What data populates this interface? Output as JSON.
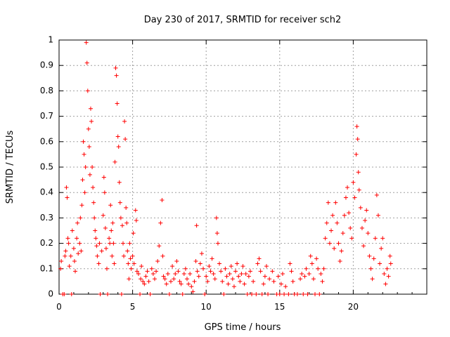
{
  "chart_data": {
    "type": "scatter",
    "title": "Day 230 of 2017, SRMTID for receiver sch2",
    "xlabel": "GPS time / hours",
    "ylabel": "SRMTID / TECUs",
    "xlim": [
      0,
      25
    ],
    "ylim": [
      0,
      1
    ],
    "xticks": [
      0,
      5,
      10,
      15,
      20
    ],
    "xtick_labels": [
      "0",
      "5",
      "10",
      "15",
      "20"
    ],
    "yticks": [
      0,
      0.1,
      0.2,
      0.3,
      0.4,
      0.5,
      0.6,
      0.7,
      0.8,
      0.9,
      1
    ],
    "ytick_labels": [
      "0",
      "0.1",
      "0.2",
      "0.3",
      "0.4",
      "0.5",
      "0.6",
      "0.7",
      "0.8",
      "0.9",
      "1"
    ],
    "grid": true,
    "marker": "+",
    "color": "#ff0000",
    "series": [
      {
        "name": "SRMTID",
        "points": [
          [
            0.1,
            0.1
          ],
          [
            0.15,
            0.13
          ],
          [
            0.25,
            0.0
          ],
          [
            0.35,
            0.0
          ],
          [
            0.4,
            0.15
          ],
          [
            0.45,
            0.17
          ],
          [
            0.5,
            0.42
          ],
          [
            0.55,
            0.38
          ],
          [
            0.6,
            0.22
          ],
          [
            0.65,
            0.2
          ],
          [
            0.7,
            0.11
          ],
          [
            0.8,
            0.15
          ],
          [
            0.85,
            0.0
          ],
          [
            0.9,
            0.25
          ],
          [
            1.0,
            0.18
          ],
          [
            1.05,
            0.13
          ],
          [
            1.1,
            0.09
          ],
          [
            1.2,
            0.22
          ],
          [
            1.25,
            0.28
          ],
          [
            1.3,
            0.16
          ],
          [
            1.4,
            0.2
          ],
          [
            1.45,
            0.3
          ],
          [
            1.5,
            0.17
          ],
          [
            1.55,
            0.35
          ],
          [
            1.6,
            0.45
          ],
          [
            1.65,
            0.6
          ],
          [
            1.7,
            0.55
          ],
          [
            1.75,
            0.4
          ],
          [
            1.8,
            0.5
          ],
          [
            1.85,
            0.99
          ],
          [
            1.9,
            0.91
          ],
          [
            1.95,
            0.8
          ],
          [
            2.0,
            0.65
          ],
          [
            2.05,
            0.58
          ],
          [
            2.1,
            0.47
          ],
          [
            2.15,
            0.73
          ],
          [
            2.2,
            0.68
          ],
          [
            2.25,
            0.5
          ],
          [
            2.3,
            0.42
          ],
          [
            2.35,
            0.36
          ],
          [
            2.4,
            0.3
          ],
          [
            2.45,
            0.25
          ],
          [
            2.5,
            0.22
          ],
          [
            2.55,
            0.19
          ],
          [
            2.6,
            0.15
          ],
          [
            2.7,
            0.12
          ],
          [
            2.75,
            0.2
          ],
          [
            2.8,
            0.0
          ],
          [
            2.9,
            0.17
          ],
          [
            3.0,
            0.31
          ],
          [
            3.05,
            0.46
          ],
          [
            3.1,
            0.4
          ],
          [
            3.15,
            0.26
          ],
          [
            3.2,
            0.18
          ],
          [
            3.25,
            0.1
          ],
          [
            3.3,
            0.0
          ],
          [
            3.4,
            0.22
          ],
          [
            3.45,
            0.2
          ],
          [
            3.5,
            0.35
          ],
          [
            3.55,
            0.25
          ],
          [
            3.6,
            0.15
          ],
          [
            3.65,
            0.28
          ],
          [
            3.7,
            0.2
          ],
          [
            3.75,
            0.12
          ],
          [
            3.8,
            0.52
          ],
          [
            3.85,
            0.89
          ],
          [
            3.9,
            0.86
          ],
          [
            3.95,
            0.75
          ],
          [
            4.0,
            0.62
          ],
          [
            4.05,
            0.58
          ],
          [
            4.1,
            0.44
          ],
          [
            4.15,
            0.36
          ],
          [
            4.2,
            0.3
          ],
          [
            4.25,
            0.0
          ],
          [
            4.3,
            0.27
          ],
          [
            4.35,
            0.2
          ],
          [
            4.4,
            0.15
          ],
          [
            4.45,
            0.68
          ],
          [
            4.5,
            0.61
          ],
          [
            4.55,
            0.34
          ],
          [
            4.6,
            0.28
          ],
          [
            4.65,
            0.17
          ],
          [
            4.7,
            0.12
          ],
          [
            4.75,
            0.06
          ],
          [
            4.8,
            0.2
          ],
          [
            4.85,
            0.14
          ],
          [
            4.9,
            0.1
          ],
          [
            5.0,
            0.15
          ],
          [
            5.05,
            0.24
          ],
          [
            5.1,
            0.12
          ],
          [
            5.2,
            0.33
          ],
          [
            5.25,
            0.29
          ],
          [
            5.3,
            0.09
          ],
          [
            5.4,
            0.08
          ],
          [
            5.5,
            0.0
          ],
          [
            5.55,
            0.06
          ],
          [
            5.6,
            0.11
          ],
          [
            5.7,
            0.05
          ],
          [
            5.8,
            0.04
          ],
          [
            5.9,
            0.07
          ],
          [
            6.0,
            0.09
          ],
          [
            6.1,
            0.05
          ],
          [
            6.2,
            0.0
          ],
          [
            6.3,
            0.1
          ],
          [
            6.4,
            0.08
          ],
          [
            6.5,
            0.06
          ],
          [
            6.6,
            0.09
          ],
          [
            6.7,
            0.13
          ],
          [
            6.8,
            0.19
          ],
          [
            6.9,
            0.28
          ],
          [
            7.0,
            0.37
          ],
          [
            7.05,
            0.15
          ],
          [
            7.1,
            0.07
          ],
          [
            7.2,
            0.06
          ],
          [
            7.3,
            0.04
          ],
          [
            7.4,
            0.08
          ],
          [
            7.5,
            0.0
          ],
          [
            7.6,
            0.05
          ],
          [
            7.7,
            0.11
          ],
          [
            7.8,
            0.06
          ],
          [
            7.9,
            0.08
          ],
          [
            8.0,
            0.13
          ],
          [
            8.1,
            0.09
          ],
          [
            8.2,
            0.05
          ],
          [
            8.3,
            0.04
          ],
          [
            8.4,
            0.0
          ],
          [
            8.5,
            0.08
          ],
          [
            8.6,
            0.1
          ],
          [
            8.7,
            0.06
          ],
          [
            8.8,
            0.04
          ],
          [
            8.9,
            0.08
          ],
          [
            9.0,
            0.03
          ],
          [
            9.1,
            0.01
          ],
          [
            9.2,
            0.05
          ],
          [
            9.3,
            0.13
          ],
          [
            9.35,
            0.27
          ],
          [
            9.4,
            0.09
          ],
          [
            9.5,
            0.07
          ],
          [
            9.6,
            0.12
          ],
          [
            9.7,
            0.16
          ],
          [
            9.8,
            0.1
          ],
          [
            9.9,
            0.0
          ],
          [
            10.0,
            0.07
          ],
          [
            10.1,
            0.05
          ],
          [
            10.2,
            0.11
          ],
          [
            10.3,
            0.09
          ],
          [
            10.4,
            0.14
          ],
          [
            10.5,
            0.08
          ],
          [
            10.6,
            0.06
          ],
          [
            10.7,
            0.3
          ],
          [
            10.75,
            0.24
          ],
          [
            10.8,
            0.2
          ],
          [
            10.9,
            0.12
          ],
          [
            11.0,
            0.09
          ],
          [
            11.1,
            0.05
          ],
          [
            11.2,
            0.0
          ],
          [
            11.3,
            0.1
          ],
          [
            11.4,
            0.07
          ],
          [
            11.5,
            0.04
          ],
          [
            11.6,
            0.08
          ],
          [
            11.7,
            0.11
          ],
          [
            11.8,
            0.06
          ],
          [
            11.9,
            0.03
          ],
          [
            12.0,
            0.09
          ],
          [
            12.1,
            0.12
          ],
          [
            12.2,
            0.07
          ],
          [
            12.3,
            0.05
          ],
          [
            12.4,
            0.08
          ],
          [
            12.5,
            0.11
          ],
          [
            12.6,
            0.04
          ],
          [
            12.7,
            0.08
          ],
          [
            12.8,
            0.0
          ],
          [
            12.9,
            0.07
          ],
          [
            13.0,
            0.09
          ],
          [
            13.1,
            0.0
          ],
          [
            13.2,
            0.05
          ],
          [
            13.4,
            0.0
          ],
          [
            13.5,
            0.12
          ],
          [
            13.6,
            0.14
          ],
          [
            13.7,
            0.09
          ],
          [
            13.8,
            0.0
          ],
          [
            13.9,
            0.04
          ],
          [
            14.0,
            0.07
          ],
          [
            14.1,
            0.11
          ],
          [
            14.2,
            0.0
          ],
          [
            14.3,
            0.06
          ],
          [
            14.5,
            0.09
          ],
          [
            14.6,
            0.05
          ],
          [
            14.8,
            0.0
          ],
          [
            14.9,
            0.07
          ],
          [
            15.0,
            0.0
          ],
          [
            15.1,
            0.04
          ],
          [
            15.2,
            0.08
          ],
          [
            15.3,
            0.0
          ],
          [
            15.4,
            0.03
          ],
          [
            15.6,
            0.0
          ],
          [
            15.7,
            0.12
          ],
          [
            15.8,
            0.09
          ],
          [
            15.9,
            0.05
          ],
          [
            16.0,
            0.0
          ],
          [
            16.2,
            0.0
          ],
          [
            16.4,
            0.06
          ],
          [
            16.5,
            0.08
          ],
          [
            16.6,
            0.0
          ],
          [
            16.7,
            0.07
          ],
          [
            16.8,
            0.1
          ],
          [
            16.9,
            0.0
          ],
          [
            17.0,
            0.08
          ],
          [
            17.1,
            0.15
          ],
          [
            17.2,
            0.12
          ],
          [
            17.3,
            0.06
          ],
          [
            17.4,
            0.0
          ],
          [
            17.5,
            0.14
          ],
          [
            17.6,
            0.1
          ],
          [
            17.7,
            0.0
          ],
          [
            17.8,
            0.08
          ],
          [
            17.9,
            0.05
          ],
          [
            18.0,
            0.1
          ],
          [
            18.1,
            0.22
          ],
          [
            18.2,
            0.28
          ],
          [
            18.3,
            0.36
          ],
          [
            18.4,
            0.2
          ],
          [
            18.5,
            0.25
          ],
          [
            18.6,
            0.31
          ],
          [
            18.7,
            0.18
          ],
          [
            18.8,
            0.36
          ],
          [
            18.9,
            0.28
          ],
          [
            19.0,
            0.2
          ],
          [
            19.1,
            0.13
          ],
          [
            19.2,
            0.17
          ],
          [
            19.3,
            0.24
          ],
          [
            19.4,
            0.31
          ],
          [
            19.5,
            0.38
          ],
          [
            19.6,
            0.42
          ],
          [
            19.7,
            0.32
          ],
          [
            19.8,
            0.26
          ],
          [
            19.9,
            0.22
          ],
          [
            20.0,
            0.44
          ],
          [
            20.1,
            0.38
          ],
          [
            20.2,
            0.55
          ],
          [
            20.25,
            0.66
          ],
          [
            20.3,
            0.61
          ],
          [
            20.35,
            0.48
          ],
          [
            20.4,
            0.41
          ],
          [
            20.5,
            0.34
          ],
          [
            20.6,
            0.26
          ],
          [
            20.7,
            0.19
          ],
          [
            20.8,
            0.29
          ],
          [
            20.9,
            0.33
          ],
          [
            21.0,
            0.24
          ],
          [
            21.1,
            0.15
          ],
          [
            21.2,
            0.1
          ],
          [
            21.3,
            0.06
          ],
          [
            21.4,
            0.14
          ],
          [
            21.5,
            0.22
          ],
          [
            21.6,
            0.39
          ],
          [
            21.7,
            0.31
          ],
          [
            21.8,
            0.12
          ],
          [
            21.9,
            0.18
          ],
          [
            22.0,
            0.22
          ],
          [
            22.1,
            0.08
          ],
          [
            22.2,
            0.04
          ],
          [
            22.3,
            0.1
          ],
          [
            22.4,
            0.07
          ],
          [
            22.5,
            0.15
          ],
          [
            22.55,
            0.12
          ]
        ]
      }
    ]
  }
}
